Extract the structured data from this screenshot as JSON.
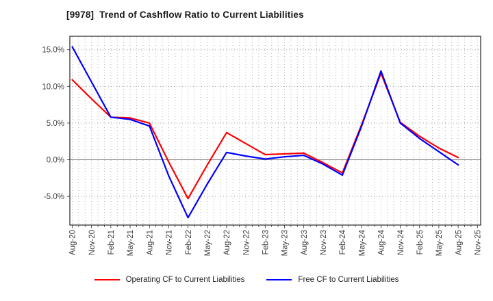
{
  "chart_data": {
    "type": "line",
    "title": "[9978]  Trend of Cashflow Ratio to Current Liabilities",
    "categories": [
      "Aug-20",
      "Nov-20",
      "Feb-21",
      "May-21",
      "Aug-21",
      "Nov-21",
      "Feb-22",
      "May-22",
      "Aug-22",
      "Nov-22",
      "Feb-23",
      "May-23",
      "Aug-23",
      "Nov-23",
      "Feb-24",
      "May-24",
      "Aug-24",
      "Nov-24",
      "Feb-25",
      "May-25",
      "Aug-25",
      "Nov-25"
    ],
    "series": [
      {
        "name": "Operating CF to Current Liabilities",
        "color": "#ff0000",
        "values": [
          10.9,
          8.3,
          5.8,
          5.7,
          5.0,
          -0.3,
          -5.3,
          -0.7,
          3.7,
          2.2,
          0.7,
          0.8,
          0.9,
          -0.4,
          -1.8,
          4.8,
          11.8,
          5.1,
          3.2,
          1.6,
          0.3,
          null
        ]
      },
      {
        "name": "Free CF to Current Liabilities",
        "color": "#0000ff",
        "values": [
          15.4,
          10.6,
          5.8,
          5.5,
          4.6,
          -2.2,
          -7.9,
          -3.3,
          1.0,
          0.5,
          0.1,
          0.4,
          0.6,
          -0.6,
          -2.1,
          4.6,
          12.1,
          5.0,
          2.9,
          1.1,
          -0.7,
          null
        ]
      }
    ],
    "ytick_values": [
      15,
      10,
      5,
      0,
      -5
    ],
    "ytick_labels": [
      "15.0%",
      "10.0%",
      "5.0%",
      "0.0%",
      "-5.0%"
    ],
    "ylim": [
      -8.8,
      16.8
    ],
    "grid": "horizontal dotted at 5% steps, solid gray zero line, dotted monthly vertical gridlines",
    "legend_position": "bottom",
    "line_width": 2.2
  },
  "colors": {
    "grid_dotted": "#999999",
    "grid_vertical": "#b3b3b3",
    "zero_line": "#808080",
    "border": "#262626",
    "tick_label": "#404040",
    "title_text": "#1a1a1a"
  }
}
